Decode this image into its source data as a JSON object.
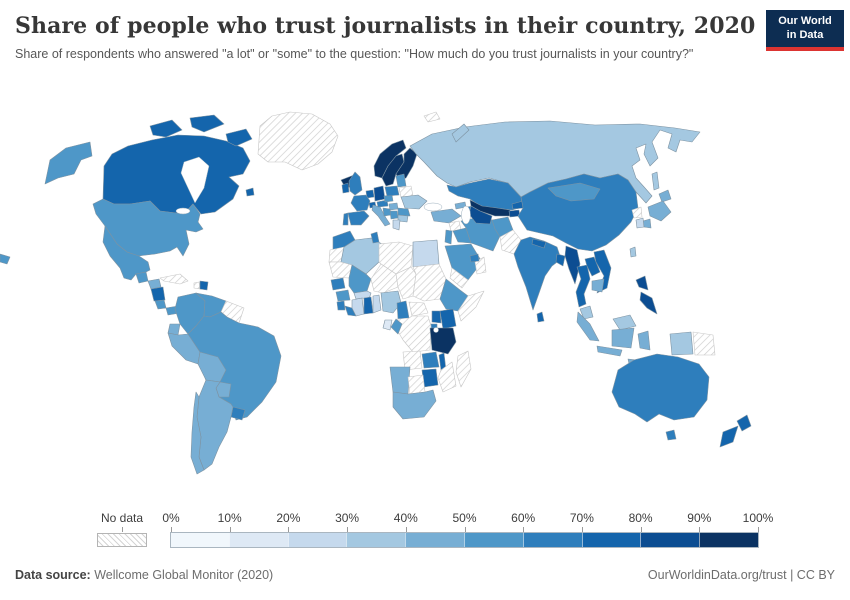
{
  "header": {
    "title": "Share of people who trust journalists in their country, 2020",
    "subtitle": "Share of respondents who answered \"a lot\" or \"some\" to the question: \"How much do you trust journalists in your country?\""
  },
  "logo": {
    "line1": "Our World",
    "line2": "in Data"
  },
  "legend": {
    "no_data_label": "No data",
    "tick_labels": [
      "0%",
      "10%",
      "20%",
      "30%",
      "40%",
      "50%",
      "60%",
      "70%",
      "80%",
      "90%",
      "100%"
    ]
  },
  "footer": {
    "source_label": "Data source:",
    "source_text": " Wellcome Global Monitor (2020)",
    "credit": "OurWorldinData.org/trust | CC BY"
  },
  "colors": {
    "scale": [
      "#f1f7fc",
      "#dee9f5",
      "#c5d9ed",
      "#a4c8e1",
      "#77aed4",
      "#4e97c8",
      "#2e7ebc",
      "#1465ac",
      "#0c4d92",
      "#0b3363"
    ],
    "border": "#7e93a2",
    "no_data_border": "#c6c6c6",
    "title_color": "#373737",
    "subtitle_color": "#575757",
    "footer_color": "#6d6d6d",
    "footer_label_color": "#444444",
    "logo_bg": "#0d2d52",
    "logo_accent": "#dc3431",
    "tick_label_color": "#3d3d3d"
  },
  "chart_data": {
    "type": "heatmap",
    "subtype": "choropleth_world_map",
    "title": "Share of people who trust journalists in their country, 2020",
    "unit": "%",
    "bins": [
      "0-10%",
      "10-20%",
      "20-30%",
      "30-40%",
      "40-50%",
      "50-60%",
      "60-70%",
      "70-80%",
      "80-90%",
      "90-100%",
      "No data"
    ],
    "legend_position": "bottom",
    "countries": [
      {
        "name": "Canada",
        "value_range": "70-80%"
      },
      {
        "name": "United States",
        "value_range": "50-60%"
      },
      {
        "name": "Mexico",
        "value_range": "50-60%"
      },
      {
        "name": "Greenland",
        "value_range": "No data"
      },
      {
        "name": "Guatemala",
        "value_range": "50-60%"
      },
      {
        "name": "Honduras",
        "value_range": "40-50%"
      },
      {
        "name": "Nicaragua",
        "value_range": "70-80%"
      },
      {
        "name": "Costa Rica",
        "value_range": "50-60%"
      },
      {
        "name": "Panama",
        "value_range": "50-60%"
      },
      {
        "name": "Cuba",
        "value_range": "No data"
      },
      {
        "name": "Haiti",
        "value_range": "No data"
      },
      {
        "name": "Dominican Republic",
        "value_range": "70-80%"
      },
      {
        "name": "Colombia",
        "value_range": "50-60%"
      },
      {
        "name": "Venezuela",
        "value_range": "50-60%"
      },
      {
        "name": "Guyana",
        "value_range": "No data"
      },
      {
        "name": "Suriname",
        "value_range": "No data"
      },
      {
        "name": "Ecuador",
        "value_range": "40-50%"
      },
      {
        "name": "Peru",
        "value_range": "40-50%"
      },
      {
        "name": "Brazil",
        "value_range": "50-60%"
      },
      {
        "name": "Bolivia",
        "value_range": "40-50%"
      },
      {
        "name": "Paraguay",
        "value_range": "40-50%"
      },
      {
        "name": "Uruguay",
        "value_range": "60-70%"
      },
      {
        "name": "Argentina",
        "value_range": "40-50%"
      },
      {
        "name": "Chile",
        "value_range": "40-50%"
      },
      {
        "name": "Iceland",
        "value_range": "90-100%"
      },
      {
        "name": "Norway",
        "value_range": "90-100%"
      },
      {
        "name": "Sweden",
        "value_range": "90-100%"
      },
      {
        "name": "Finland",
        "value_range": "90-100%"
      },
      {
        "name": "Denmark",
        "value_range": "80-90%"
      },
      {
        "name": "United Kingdom",
        "value_range": "60-70%"
      },
      {
        "name": "Ireland",
        "value_range": "70-80%"
      },
      {
        "name": "Netherlands",
        "value_range": "70-80%"
      },
      {
        "name": "Belgium",
        "value_range": "70-80%"
      },
      {
        "name": "Germany",
        "value_range": "80-90%"
      },
      {
        "name": "Switzerland",
        "value_range": "70-80%"
      },
      {
        "name": "Austria",
        "value_range": "60-70%"
      },
      {
        "name": "France",
        "value_range": "60-70%"
      },
      {
        "name": "Spain",
        "value_range": "60-70%"
      },
      {
        "name": "Portugal",
        "value_range": "60-70%"
      },
      {
        "name": "Italy",
        "value_range": "40-50%"
      },
      {
        "name": "Czechia",
        "value_range": "50-60%"
      },
      {
        "name": "Poland",
        "value_range": "60-70%"
      },
      {
        "name": "Estonia",
        "value_range": "50-60%"
      },
      {
        "name": "Latvia",
        "value_range": "50-60%"
      },
      {
        "name": "Lithuania",
        "value_range": "50-60%"
      },
      {
        "name": "Belarus",
        "value_range": "No data"
      },
      {
        "name": "Ukraine",
        "value_range": "30-40%"
      },
      {
        "name": "Hungary",
        "value_range": "40-50%"
      },
      {
        "name": "Romania",
        "value_range": "50-60%"
      },
      {
        "name": "Serbia",
        "value_range": "50-60%"
      },
      {
        "name": "Croatia",
        "value_range": "50-60%"
      },
      {
        "name": "Bulgaria",
        "value_range": "30-40%"
      },
      {
        "name": "Greece",
        "value_range": "20-30%"
      },
      {
        "name": "Russia",
        "value_range": "30-40%"
      },
      {
        "name": "Turkey",
        "value_range": "40-50%"
      },
      {
        "name": "Georgia",
        "value_range": "40-50%"
      },
      {
        "name": "Azerbaijan",
        "value_range": "60-70%"
      },
      {
        "name": "Syria",
        "value_range": "No data"
      },
      {
        "name": "Iraq",
        "value_range": "50-60%"
      },
      {
        "name": "Iran",
        "value_range": "50-60%"
      },
      {
        "name": "Israel",
        "value_range": "50-60%"
      },
      {
        "name": "Jordan",
        "value_range": "50-60%"
      },
      {
        "name": "Saudi Arabia",
        "value_range": "50-60%"
      },
      {
        "name": "Yemen",
        "value_range": "No data"
      },
      {
        "name": "Oman",
        "value_range": "No data"
      },
      {
        "name": "United Arab Emirates",
        "value_range": "60-70%"
      },
      {
        "name": "Kazakhstan",
        "value_range": "60-70%"
      },
      {
        "name": "Uzbekistan",
        "value_range": "90-100%"
      },
      {
        "name": "Turkmenistan",
        "value_range": "80-90%"
      },
      {
        "name": "Kyrgyzstan",
        "value_range": "70-80%"
      },
      {
        "name": "Tajikistan",
        "value_range": "80-90%"
      },
      {
        "name": "Afghanistan",
        "value_range": "50-60%"
      },
      {
        "name": "Pakistan",
        "value_range": "No data"
      },
      {
        "name": "India",
        "value_range": "60-70%"
      },
      {
        "name": "Nepal",
        "value_range": "70-80%"
      },
      {
        "name": "Bangladesh",
        "value_range": "70-80%"
      },
      {
        "name": "Sri Lanka",
        "value_range": "70-80%"
      },
      {
        "name": "China",
        "value_range": "60-70%"
      },
      {
        "name": "Mongolia",
        "value_range": "50-60%"
      },
      {
        "name": "Myanmar",
        "value_range": "80-90%"
      },
      {
        "name": "Thailand",
        "value_range": "70-80%"
      },
      {
        "name": "Laos",
        "value_range": "70-80%"
      },
      {
        "name": "Vietnam",
        "value_range": "70-80%"
      },
      {
        "name": "Cambodia",
        "value_range": "40-50%"
      },
      {
        "name": "Malaysia",
        "value_range": "30-40%"
      },
      {
        "name": "Indonesia",
        "value_range": "40-50%"
      },
      {
        "name": "Philippines",
        "value_range": "80-90%"
      },
      {
        "name": "Japan",
        "value_range": "40-50%"
      },
      {
        "name": "South Korea",
        "value_range": "20-30%"
      },
      {
        "name": "North Korea",
        "value_range": "No data"
      },
      {
        "name": "Taiwan",
        "value_range": "30-40%"
      },
      {
        "name": "Papua New Guinea",
        "value_range": "No data"
      },
      {
        "name": "Australia",
        "value_range": "60-70%"
      },
      {
        "name": "New Zealand",
        "value_range": "70-80%"
      },
      {
        "name": "Morocco",
        "value_range": "60-70%"
      },
      {
        "name": "Western Sahara",
        "value_range": "No data"
      },
      {
        "name": "Algeria",
        "value_range": "30-40%"
      },
      {
        "name": "Tunisia",
        "value_range": "60-70%"
      },
      {
        "name": "Libya",
        "value_range": "No data"
      },
      {
        "name": "Egypt",
        "value_range": "20-30%"
      },
      {
        "name": "Mauritania",
        "value_range": "No data"
      },
      {
        "name": "Mali",
        "value_range": "50-60%"
      },
      {
        "name": "Niger",
        "value_range": "No data"
      },
      {
        "name": "Chad",
        "value_range": "No data"
      },
      {
        "name": "Sudan",
        "value_range": "No data"
      },
      {
        "name": "Senegal",
        "value_range": "60-70%"
      },
      {
        "name": "Guinea",
        "value_range": "50-60%"
      },
      {
        "name": "Sierra Leone",
        "value_range": "60-70%"
      },
      {
        "name": "Liberia",
        "value_range": "60-70%"
      },
      {
        "name": "Ivory Coast",
        "value_range": "20-30%"
      },
      {
        "name": "Ghana",
        "value_range": "70-80%"
      },
      {
        "name": "Togo",
        "value_range": "20-30%"
      },
      {
        "name": "Benin",
        "value_range": "20-30%"
      },
      {
        "name": "Burkina Faso",
        "value_range": "20-30%"
      },
      {
        "name": "Nigeria",
        "value_range": "30-40%"
      },
      {
        "name": "Cameroon",
        "value_range": "60-70%"
      },
      {
        "name": "Central African Republic",
        "value_range": "No data"
      },
      {
        "name": "Ethiopia",
        "value_range": "50-60%"
      },
      {
        "name": "Somalia",
        "value_range": "No data"
      },
      {
        "name": "Kenya",
        "value_range": "70-80%"
      },
      {
        "name": "Uganda",
        "value_range": "70-80%"
      },
      {
        "name": "Rwanda",
        "value_range": "60-70%"
      },
      {
        "name": "Burundi",
        "value_range": "60-70%"
      },
      {
        "name": "DR Congo",
        "value_range": "No data"
      },
      {
        "name": "Congo",
        "value_range": "50-60%"
      },
      {
        "name": "Gabon",
        "value_range": "10-20%"
      },
      {
        "name": "Tanzania",
        "value_range": "90-100%"
      },
      {
        "name": "Angola",
        "value_range": "No data"
      },
      {
        "name": "Zambia",
        "value_range": "60-70%"
      },
      {
        "name": "Malawi",
        "value_range": "70-80%"
      },
      {
        "name": "Mozambique",
        "value_range": "No data"
      },
      {
        "name": "Zimbabwe",
        "value_range": "70-80%"
      },
      {
        "name": "Namibia",
        "value_range": "40-50%"
      },
      {
        "name": "Botswana",
        "value_range": "No data"
      },
      {
        "name": "South Africa",
        "value_range": "40-50%"
      },
      {
        "name": "Madagascar",
        "value_range": "No data"
      }
    ]
  }
}
